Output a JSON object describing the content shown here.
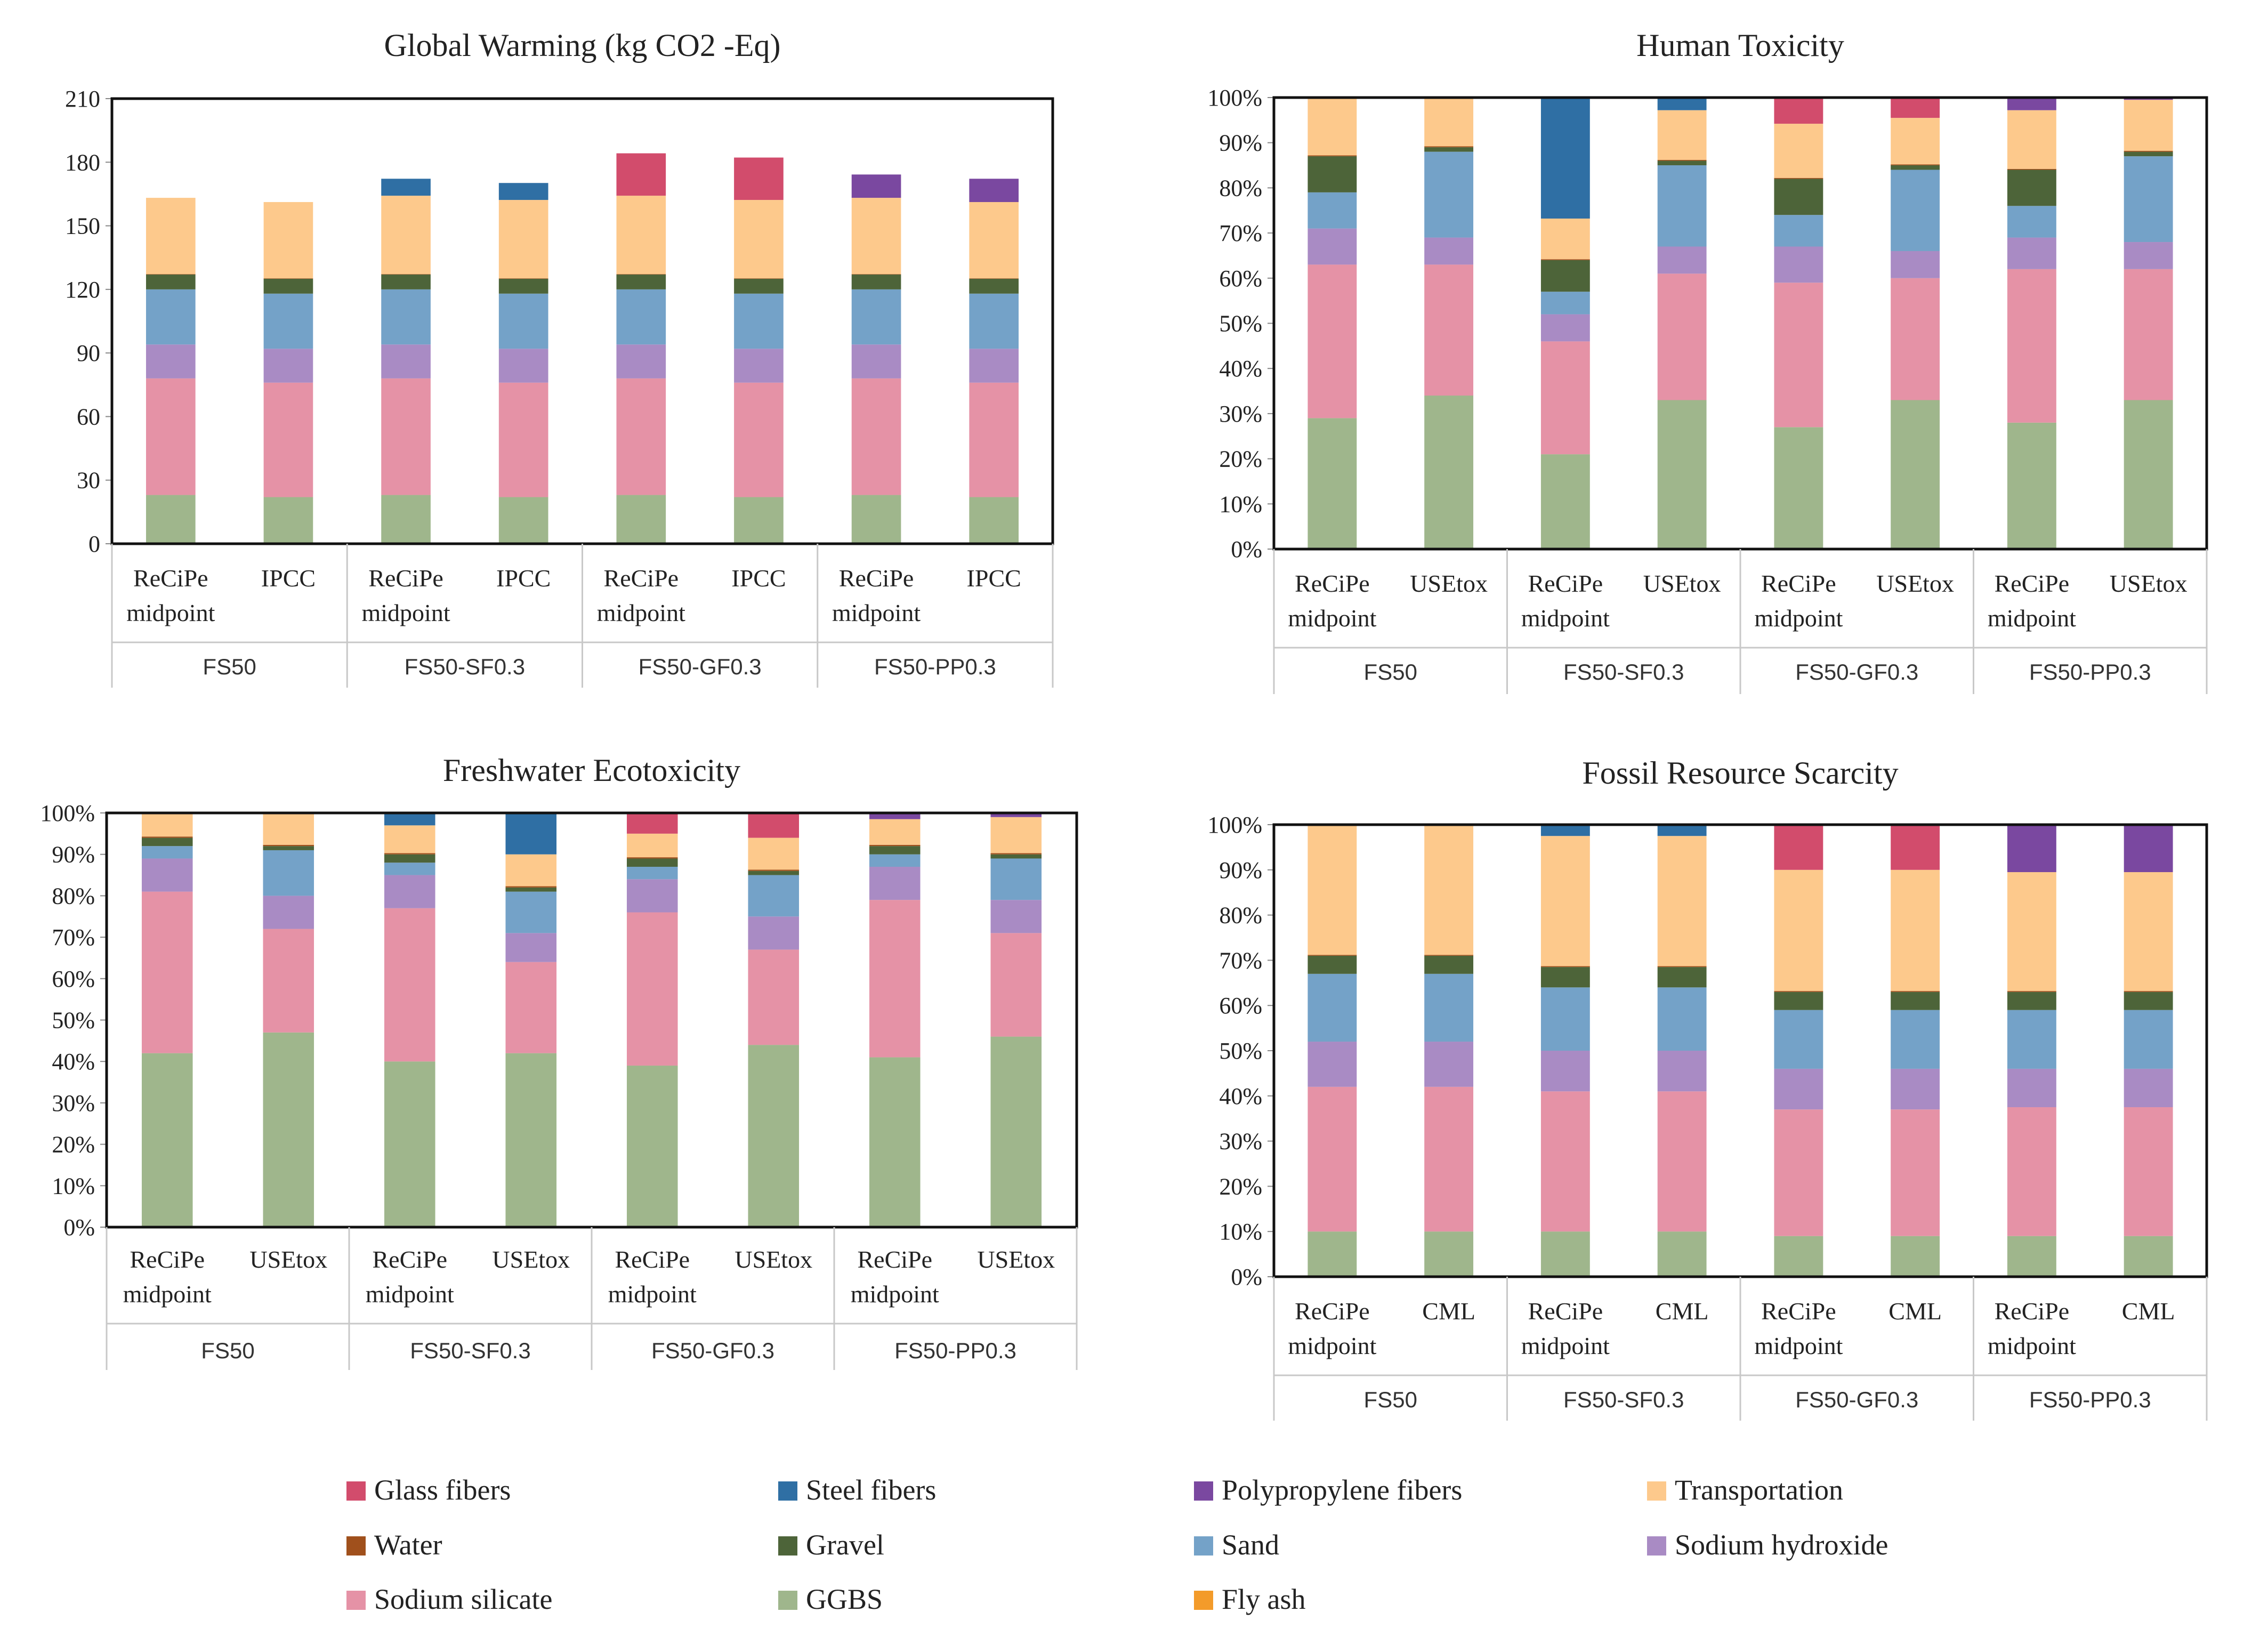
{
  "colors": {
    "GGBS": "#9FB68C",
    "Sodium silicate": "#E592A6",
    "Sodium hydroxide": "#A98BC4",
    "Sand": "#74A2C8",
    "Gravel": "#4D6439",
    "Water": "#A0501C",
    "Transportation": "#FDC98C",
    "Polypropylene fibers": "#7A48A0",
    "Steel fibers": "#2F6FA4",
    "Glass fibers": "#D24C6C",
    "Fly ash": "#F39B2A"
  },
  "stack_order": [
    "GGBS",
    "Sodium silicate",
    "Sodium hydroxide",
    "Sand",
    "Gravel",
    "Water",
    "Transportation",
    "Polypropylene fibers",
    "Steel fibers",
    "Glass fibers"
  ],
  "legend": {
    "items": [
      "Glass fibers",
      "Steel fibers",
      "Polypropylene fibers",
      "Transportation",
      "Water",
      "Gravel",
      "Sand",
      "Sodium hydroxide",
      "Sodium silicate",
      "GGBS",
      "Fly ash"
    ]
  },
  "chart_data": [
    {
      "type": "bar",
      "stacked": true,
      "title": "Global Warming (kg CO2 -Eq)",
      "ylim": [
        0,
        210
      ],
      "yticks": [
        "0",
        "30",
        "60",
        "90",
        "120",
        "150",
        "180",
        "210"
      ],
      "groups": [
        "FS50",
        "FS50-SF0.3",
        "FS50-GF0.3",
        "FS50-PP0.3"
      ],
      "categories": [
        [
          "ReCiPe",
          "midpoint"
        ],
        [
          "IPCC"
        ],
        [
          "ReCiPe",
          "midpoint"
        ],
        [
          "IPCC"
        ],
        [
          "ReCiPe",
          "midpoint"
        ],
        [
          "IPCC"
        ],
        [
          "ReCiPe",
          "midpoint"
        ],
        [
          "IPCC"
        ]
      ],
      "series": [
        {
          "name": "GGBS",
          "values": [
            23,
            22,
            23,
            22,
            23,
            22,
            23,
            22
          ]
        },
        {
          "name": "Sodium silicate",
          "values": [
            55,
            54,
            55,
            54,
            55,
            54,
            55,
            54
          ]
        },
        {
          "name": "Sodium hydroxide",
          "values": [
            16,
            16,
            16,
            16,
            16,
            16,
            16,
            16
          ]
        },
        {
          "name": "Sand",
          "values": [
            26,
            26,
            26,
            26,
            26,
            26,
            26,
            26
          ]
        },
        {
          "name": "Gravel",
          "values": [
            7,
            7,
            7,
            7,
            7,
            7,
            7,
            7
          ]
        },
        {
          "name": "Water",
          "values": [
            0.2,
            0.2,
            0.2,
            0.2,
            0.2,
            0.2,
            0.2,
            0.2
          ]
        },
        {
          "name": "Transportation",
          "values": [
            36,
            36,
            37,
            37,
            37,
            37,
            36,
            36
          ]
        },
        {
          "name": "Polypropylene fibers",
          "values": [
            0,
            0,
            0,
            0,
            0,
            0,
            11,
            11
          ]
        },
        {
          "name": "Steel fibers",
          "values": [
            0,
            0,
            8,
            8,
            0,
            0,
            0,
            0
          ]
        },
        {
          "name": "Glass fibers",
          "values": [
            0,
            0,
            0,
            0,
            20,
            20,
            0,
            0
          ]
        }
      ]
    },
    {
      "type": "bar",
      "stacked": true,
      "title": "Human Toxicity",
      "ylim": [
        0,
        100
      ],
      "yticks": [
        "0%",
        "10%",
        "20%",
        "30%",
        "40%",
        "50%",
        "60%",
        "70%",
        "80%",
        "90%",
        "100%"
      ],
      "groups": [
        "FS50",
        "FS50-SF0.3",
        "FS50-GF0.3",
        "FS50-PP0.3"
      ],
      "categories": [
        [
          "ReCiPe",
          "midpoint"
        ],
        [
          "USEtox"
        ],
        [
          "ReCiPe",
          "midpoint"
        ],
        [
          "USEtox"
        ],
        [
          "ReCiPe",
          "midpoint"
        ],
        [
          "USEtox"
        ],
        [
          "ReCiPe",
          "midpoint"
        ],
        [
          "USEtox"
        ]
      ],
      "series": [
        {
          "name": "GGBS",
          "values": [
            29,
            34,
            21,
            33,
            27,
            33,
            28,
            33
          ]
        },
        {
          "name": "Sodium silicate",
          "values": [
            34,
            29,
            25,
            28,
            32,
            27,
            34,
            29
          ]
        },
        {
          "name": "Sodium hydroxide",
          "values": [
            8,
            6,
            6,
            6,
            8,
            6,
            7,
            6
          ]
        },
        {
          "name": "Sand",
          "values": [
            8,
            19,
            5,
            18,
            7,
            18,
            7,
            19
          ]
        },
        {
          "name": "Gravel",
          "values": [
            8,
            1,
            7,
            1,
            8,
            1,
            8,
            1
          ]
        },
        {
          "name": "Water",
          "values": [
            0.2,
            0.2,
            0.2,
            0.2,
            0.2,
            0.2,
            0.2,
            0.2
          ]
        },
        {
          "name": "Transportation",
          "values": [
            12.8,
            10.8,
            9,
            11,
            12,
            10.3,
            13,
            11.3
          ]
        },
        {
          "name": "Polypropylene fibers",
          "values": [
            0,
            0,
            0,
            0,
            0,
            0,
            2.8,
            0.7
          ]
        },
        {
          "name": "Steel fibers",
          "values": [
            0,
            0,
            26.8,
            2.8,
            0,
            0,
            0,
            0
          ]
        },
        {
          "name": "Glass fibers",
          "values": [
            0,
            0,
            0,
            0,
            5.8,
            4.5,
            0,
            0
          ]
        }
      ]
    },
    {
      "type": "bar",
      "stacked": true,
      "title": "Freshwater Ecotoxicity",
      "ylim": [
        0,
        100
      ],
      "yticks": [
        "0%",
        "10%",
        "20%",
        "30%",
        "40%",
        "50%",
        "60%",
        "70%",
        "80%",
        "90%",
        "100%"
      ],
      "groups": [
        "FS50",
        "FS50-SF0.3",
        "FS50-GF0.3",
        "FS50-PP0.3"
      ],
      "categories": [
        [
          "ReCiPe",
          "midpoint"
        ],
        [
          "USEtox"
        ],
        [
          "ReCiPe",
          "midpoint"
        ],
        [
          "USEtox"
        ],
        [
          "ReCiPe",
          "midpoint"
        ],
        [
          "USEtox"
        ],
        [
          "ReCiPe",
          "midpoint"
        ],
        [
          "USEtox"
        ]
      ],
      "series": [
        {
          "name": "GGBS",
          "values": [
            42,
            47,
            40,
            42,
            39,
            44,
            41,
            46
          ]
        },
        {
          "name": "Sodium silicate",
          "values": [
            39,
            25,
            37,
            22,
            37,
            23,
            38,
            25
          ]
        },
        {
          "name": "Sodium hydroxide",
          "values": [
            8,
            8,
            8,
            7,
            8,
            8,
            8,
            8
          ]
        },
        {
          "name": "Sand",
          "values": [
            3,
            11,
            3,
            10,
            3,
            10,
            3,
            10
          ]
        },
        {
          "name": "Gravel",
          "values": [
            2,
            1,
            2,
            1,
            2,
            1,
            2,
            1
          ]
        },
        {
          "name": "Water",
          "values": [
            0.3,
            0.3,
            0.3,
            0.3,
            0.3,
            0.3,
            0.3,
            0.3
          ]
        },
        {
          "name": "Transportation",
          "values": [
            5.7,
            7.7,
            6.7,
            7.7,
            5.7,
            7.7,
            6.2,
            8.7
          ]
        },
        {
          "name": "Polypropylene fibers",
          "values": [
            0,
            0,
            0,
            0,
            0,
            0,
            1.5,
            1
          ]
        },
        {
          "name": "Steel fibers",
          "values": [
            0,
            0,
            3,
            10,
            0,
            0,
            0,
            0
          ]
        },
        {
          "name": "Glass fibers",
          "values": [
            0,
            0,
            0,
            0,
            5,
            6,
            0,
            0
          ]
        }
      ]
    },
    {
      "type": "bar",
      "stacked": true,
      "title": "Fossil Resource Scarcity",
      "ylim": [
        0,
        100
      ],
      "yticks": [
        "0%",
        "10%",
        "20%",
        "30%",
        "40%",
        "50%",
        "60%",
        "70%",
        "80%",
        "90%",
        "100%"
      ],
      "groups": [
        "FS50",
        "FS50-SF0.3",
        "FS50-GF0.3",
        "FS50-PP0.3"
      ],
      "categories": [
        [
          "ReCiPe",
          "midpoint"
        ],
        [
          "CML"
        ],
        [
          "ReCiPe",
          "midpoint"
        ],
        [
          "CML"
        ],
        [
          "ReCiPe",
          "midpoint"
        ],
        [
          "CML"
        ],
        [
          "ReCiPe",
          "midpoint"
        ],
        [
          "CML"
        ]
      ],
      "series": [
        {
          "name": "GGBS",
          "values": [
            10,
            10,
            10,
            10,
            9,
            9,
            9,
            9
          ]
        },
        {
          "name": "Sodium silicate",
          "values": [
            32,
            32,
            31,
            31,
            28,
            28,
            28.5,
            28.5
          ]
        },
        {
          "name": "Sodium hydroxide",
          "values": [
            10,
            10,
            9,
            9,
            9,
            9,
            8.5,
            8.5
          ]
        },
        {
          "name": "Sand",
          "values": [
            15,
            15,
            14,
            14,
            13,
            13,
            13,
            13
          ]
        },
        {
          "name": "Gravel",
          "values": [
            4,
            4,
            4.5,
            4.5,
            4,
            4,
            4,
            4
          ]
        },
        {
          "name": "Water",
          "values": [
            0.2,
            0.2,
            0.2,
            0.2,
            0.2,
            0.2,
            0.2,
            0.2
          ]
        },
        {
          "name": "Transportation",
          "values": [
            28.8,
            28.8,
            28.8,
            28.8,
            26.8,
            26.8,
            26.3,
            26.3
          ]
        },
        {
          "name": "Polypropylene fibers",
          "values": [
            0,
            0,
            0,
            0,
            0,
            0,
            10.5,
            10.5
          ]
        },
        {
          "name": "Steel fibers",
          "values": [
            0,
            0,
            2.5,
            2.5,
            0,
            0,
            0,
            0
          ]
        },
        {
          "name": "Glass fibers",
          "values": [
            0,
            0,
            0,
            0,
            10,
            10,
            0,
            0
          ]
        }
      ]
    }
  ]
}
